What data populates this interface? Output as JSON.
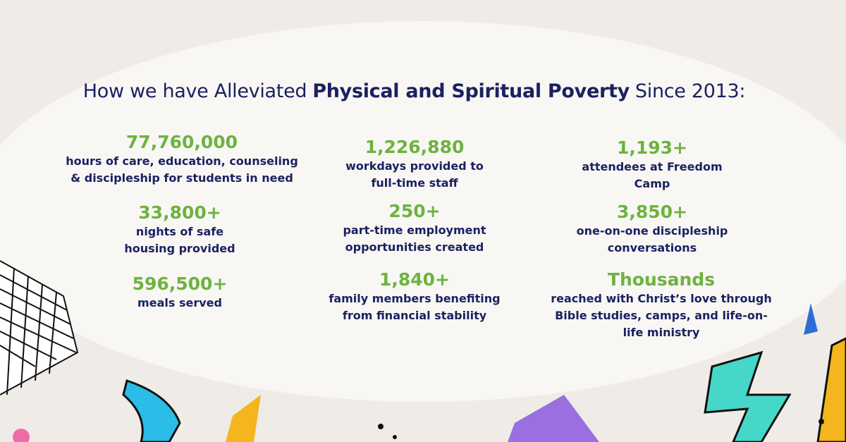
{
  "title": {
    "prefix": "How we have Alleviated",
    "emphasis": "Physical and Spiritual Poverty",
    "suffix": "Since 2013:"
  },
  "stats": [
    {
      "value": "77,760,000",
      "lines": [
        "hours of care, education, counseling",
        "& discipleship for students in need"
      ]
    },
    {
      "value": "33,800+",
      "lines": [
        "nights of safe",
        "housing provided"
      ]
    },
    {
      "value": "596,500+",
      "lines": [
        "meals served"
      ]
    },
    {
      "value": "1,226,880",
      "lines": [
        "workdays provided to",
        "full-time staff"
      ]
    },
    {
      "value": "250+",
      "lines": [
        "part-time employment",
        "opportunities created"
      ]
    },
    {
      "value": "1,840+",
      "lines": [
        "family members benefiting",
        "from financial stability"
      ]
    },
    {
      "value": "1,193+",
      "lines": [
        "attendees at Freedom",
        "Camp"
      ]
    },
    {
      "value": "3,850+",
      "lines": [
        "one-on-one discipleship",
        "conversations"
      ]
    },
    {
      "value": "Thousands",
      "lines": [
        "reached with Christ’s love through",
        "Bible studies, camps, and life-on-",
        "life ministry"
      ]
    }
  ]
}
